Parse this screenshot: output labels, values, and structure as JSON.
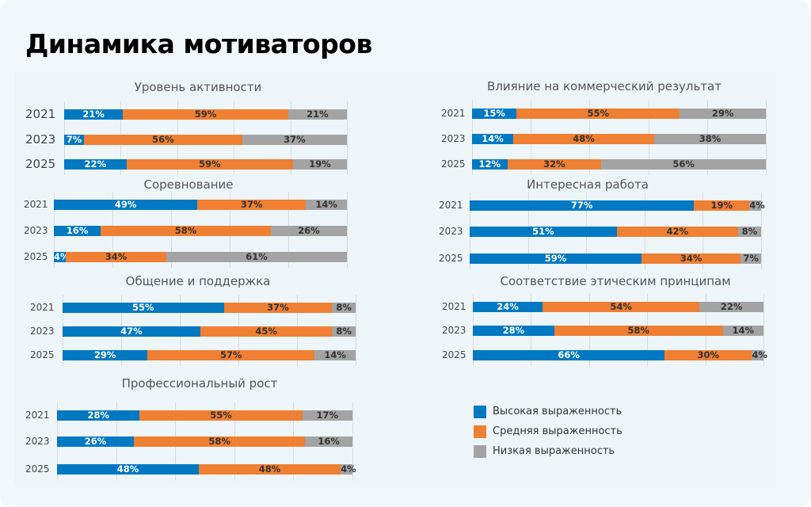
{
  "header": {
    "title": "Динамика мотиваторов"
  },
  "colors": {
    "high": "#0078c2",
    "medium": "#ef7f32",
    "low": "#a3a3a3",
    "background": "#f2f7fb"
  },
  "chart_data": {
    "type": "bar",
    "stacked": true,
    "orientation": "horizontal",
    "unit": "%",
    "legend": {
      "placement": "bottom-right",
      "entries": [
        "Высокая выраженность",
        "Средняя выраженность",
        "Низкая выраженность"
      ]
    },
    "charts": [
      {
        "title": "Уровень активности",
        "categories": [
          "2021",
          "2023",
          "2025"
        ],
        "series": [
          {
            "name": "Высокая выраженность",
            "values": [
              21,
              7,
              22
            ]
          },
          {
            "name": "Средняя выраженность",
            "values": [
              59,
              56,
              59
            ]
          },
          {
            "name": "Низкая выраженность",
            "values": [
              21,
              37,
              19
            ]
          }
        ]
      },
      {
        "title": "Соревнование",
        "categories": [
          "2021",
          "2023",
          "2025"
        ],
        "series": [
          {
            "name": "Высокая выраженность",
            "values": [
              49,
              16,
              4
            ]
          },
          {
            "name": "Средняя выраженность",
            "values": [
              37,
              58,
              34
            ]
          },
          {
            "name": "Низкая выраженность",
            "values": [
              14,
              26,
              61
            ]
          }
        ]
      },
      {
        "title": "Общение и поддержка",
        "categories": [
          "2021",
          "2023",
          "2025"
        ],
        "series": [
          {
            "name": "Высокая выраженность",
            "values": [
              55,
              47,
              29
            ]
          },
          {
            "name": "Средняя выраженность",
            "values": [
              37,
              45,
              57
            ]
          },
          {
            "name": "Низкая выраженность",
            "values": [
              8,
              8,
              14
            ]
          }
        ]
      },
      {
        "title": "Профессиональный рост",
        "categories": [
          "2021",
          "2023",
          "2025"
        ],
        "series": [
          {
            "name": "Высокая выраженность",
            "values": [
              28,
              26,
              48
            ]
          },
          {
            "name": "Средняя выраженность",
            "values": [
              55,
              58,
              48
            ]
          },
          {
            "name": "Низкая выраженность",
            "values": [
              17,
              16,
              4
            ]
          }
        ]
      },
      {
        "title": "Влияние на коммерческий результат",
        "categories": [
          "2021",
          "2023",
          "2025"
        ],
        "series": [
          {
            "name": "Высокая выраженность",
            "values": [
              15,
              14,
              12
            ]
          },
          {
            "name": "Средняя выраженность",
            "values": [
              55,
              48,
              32
            ]
          },
          {
            "name": "Низкая выраженность",
            "values": [
              29,
              38,
              56
            ]
          }
        ]
      },
      {
        "title": "Интересная работа",
        "categories": [
          "2021",
          "2023",
          "2025"
        ],
        "series": [
          {
            "name": "Высокая выраженность",
            "values": [
              77,
              51,
              59
            ]
          },
          {
            "name": "Средняя выраженность",
            "values": [
              19,
              42,
              34
            ]
          },
          {
            "name": "Низкая выраженность",
            "values": [
              4,
              8,
              7
            ]
          }
        ]
      },
      {
        "title": "Соответствие этическим принципам",
        "categories": [
          "2021",
          "2023",
          "2025"
        ],
        "series": [
          {
            "name": "Высокая выраженность",
            "values": [
              24,
              28,
              66
            ]
          },
          {
            "name": "Средняя выраженность",
            "values": [
              54,
              58,
              30
            ]
          },
          {
            "name": "Низкая выраженность",
            "values": [
              22,
              14,
              4
            ]
          }
        ]
      }
    ]
  }
}
